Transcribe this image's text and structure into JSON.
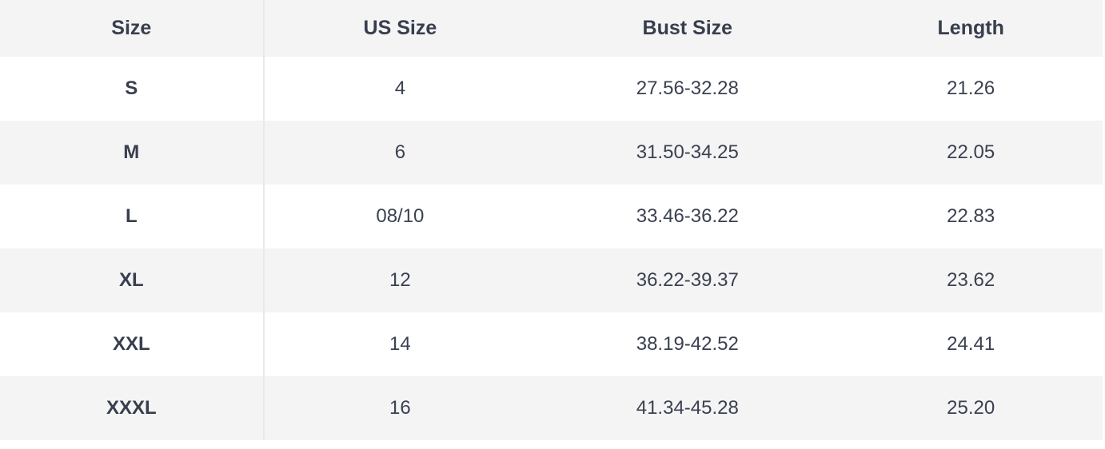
{
  "size_chart": {
    "columns": {
      "size": "Size",
      "us_size": "US Size",
      "bust_size": "Bust Size",
      "length": "Length"
    },
    "rows": [
      {
        "size": "S",
        "us_size": "4",
        "bust_size": "27.56-32.28",
        "length": "21.26"
      },
      {
        "size": "M",
        "us_size": "6",
        "bust_size": "31.50-34.25",
        "length": "22.05"
      },
      {
        "size": "L",
        "us_size": "08/10",
        "bust_size": "33.46-36.22",
        "length": "22.83"
      },
      {
        "size": "XL",
        "us_size": "12",
        "bust_size": "36.22-39.37",
        "length": "23.62"
      },
      {
        "size": "XXL",
        "us_size": "14",
        "bust_size": "38.19-42.52",
        "length": "24.41"
      },
      {
        "size": "XXXL",
        "us_size": "16",
        "bust_size": "41.34-45.28",
        "length": "25.20"
      }
    ],
    "colors": {
      "header_bg": "#f4f4f5",
      "stripe_bg": "#f4f4f5",
      "row_bg": "#ffffff",
      "text": "#3a4150",
      "header_text": "#373e4d",
      "divider": "#e9e9eb"
    }
  }
}
